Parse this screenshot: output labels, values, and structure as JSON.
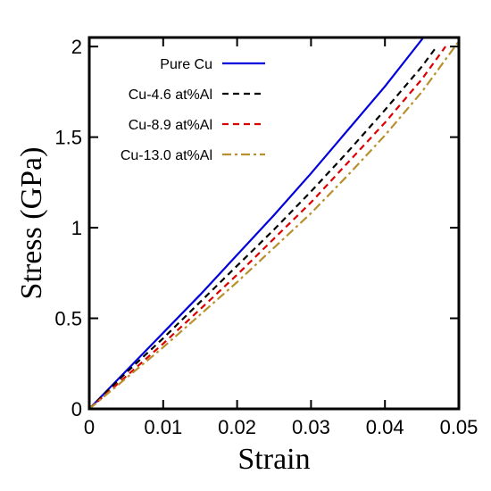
{
  "chart_data": {
    "type": "line",
    "title": "",
    "xlabel": "Strain",
    "ylabel": "Stress (GPa)",
    "xlim": [
      0,
      0.05
    ],
    "ylim": [
      0,
      2.05
    ],
    "xticks": [
      {
        "value": 0,
        "label": "0"
      },
      {
        "value": 0.01,
        "label": "0.01"
      },
      {
        "value": 0.02,
        "label": "0.02"
      },
      {
        "value": 0.03,
        "label": "0.03"
      },
      {
        "value": 0.04,
        "label": "0.04"
      },
      {
        "value": 0.05,
        "label": "0.05"
      }
    ],
    "yticks": [
      {
        "value": 0,
        "label": "0"
      },
      {
        "value": 0.5,
        "label": "0.5"
      },
      {
        "value": 1,
        "label": "1"
      },
      {
        "value": 1.5,
        "label": "1.5"
      },
      {
        "value": 2,
        "label": "2"
      }
    ],
    "grid": false,
    "legend_position": "top-left",
    "series": [
      {
        "name": "Pure Cu",
        "color": "#0000dd",
        "dash": "solid",
        "x": [
          0,
          0.005,
          0.01,
          0.015,
          0.02,
          0.025,
          0.03,
          0.035,
          0.04,
          0.0452
        ],
        "y": [
          0,
          0.21,
          0.42,
          0.63,
          0.85,
          1.07,
          1.3,
          1.54,
          1.78,
          2.05
        ]
      },
      {
        "name": "Cu-4.6 at%Al",
        "color": "#000000",
        "dash": "dashed",
        "x": [
          0,
          0.005,
          0.01,
          0.015,
          0.02,
          0.025,
          0.03,
          0.035,
          0.04,
          0.045,
          0.047
        ],
        "y": [
          0,
          0.2,
          0.39,
          0.59,
          0.79,
          0.99,
          1.2,
          1.42,
          1.65,
          1.89,
          2.0
        ]
      },
      {
        "name": "Cu-8.9 at%Al",
        "color": "#dd0000",
        "dash": "dashed",
        "x": [
          0,
          0.005,
          0.01,
          0.015,
          0.02,
          0.025,
          0.03,
          0.035,
          0.04,
          0.045,
          0.0482
        ],
        "y": [
          0,
          0.18,
          0.36,
          0.55,
          0.74,
          0.94,
          1.14,
          1.36,
          1.58,
          1.82,
          2.0
        ]
      },
      {
        "name": "Cu-13.0 at%Al",
        "color": "#b8902d",
        "dash": "dash-dot",
        "x": [
          0,
          0.005,
          0.01,
          0.015,
          0.02,
          0.025,
          0.03,
          0.035,
          0.04,
          0.045,
          0.05
        ],
        "y": [
          0,
          0.17,
          0.34,
          0.52,
          0.7,
          0.89,
          1.08,
          1.29,
          1.51,
          1.75,
          2.03
        ]
      }
    ]
  }
}
